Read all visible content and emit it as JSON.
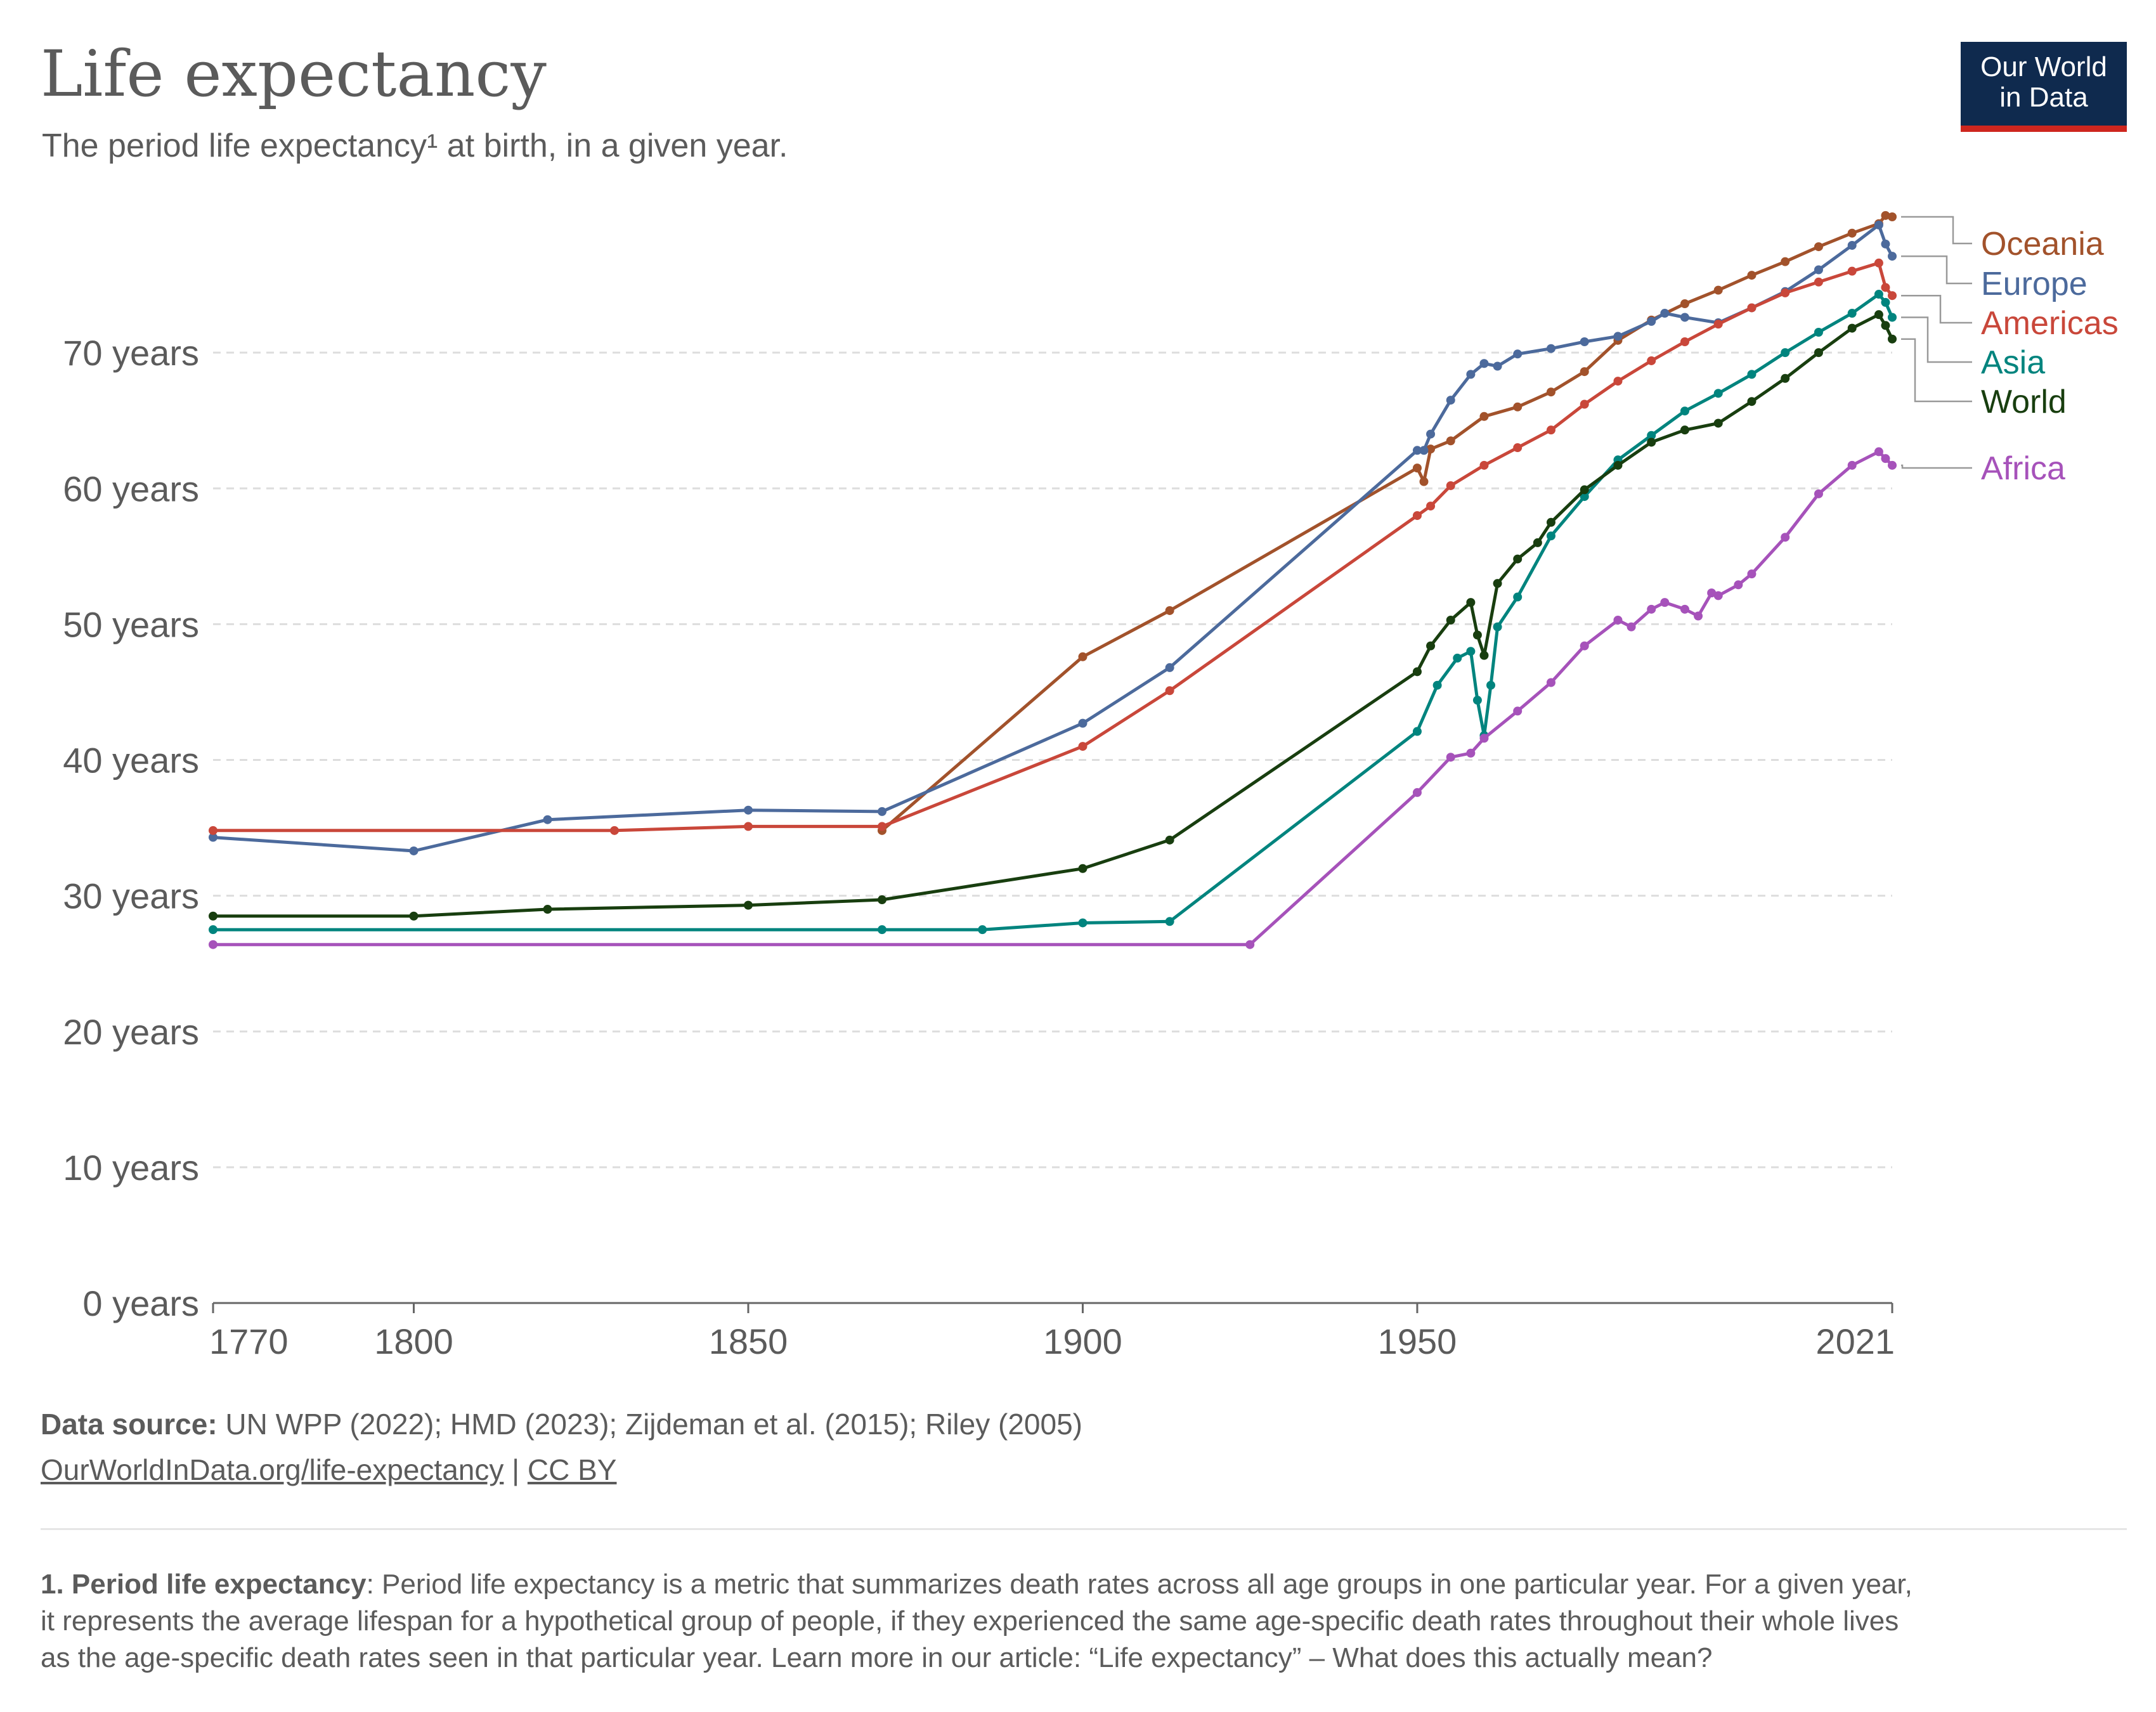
{
  "header": {
    "title": "Life expectancy",
    "subtitle": "The period life expectancy¹ at birth, in a given year."
  },
  "logo": {
    "line1": "Our World",
    "line2": "in Data"
  },
  "colors": {
    "Oceania": "#a2522b",
    "Europe": "#4c6a9c",
    "Americas": "#c9473a",
    "Asia": "#00847e",
    "World": "#183e0f",
    "Africa": "#a652ba",
    "grid": "#dddddd",
    "axis": "#666666"
  },
  "footer": {
    "source_label": "Data source:",
    "source_text": " UN WPP (2022); HMD (2023); Zijdeman et al. (2015); Riley (2005)",
    "link": "OurWorldInData.org/life-expectancy",
    "separator": " | ",
    "license": "CC BY"
  },
  "footnote": {
    "label": "1. Period life expectancy",
    "line1": ": Period life expectancy is a metric that summarizes death rates across all age groups in one particular year. For a given year,",
    "line2": "it represents the average lifespan for a hypothetical group of people, if they experienced the same age-specific death rates throughout their whole lives",
    "line3": "as the age-specific death rates seen in that particular year. Learn more in our article: “Life expectancy” – What does this actually mean?"
  },
  "chart_data": {
    "type": "line",
    "title": "Life expectancy",
    "subtitle": "The period life expectancy¹ at birth, in a given year.",
    "xlabel": "",
    "ylabel": "",
    "xlim": [
      1770,
      2021
    ],
    "ylim": [
      0,
      80
    ],
    "x_ticks": [
      1770,
      1800,
      1850,
      1900,
      1950,
      2021
    ],
    "y_ticks": [
      0,
      10,
      20,
      30,
      40,
      50,
      60,
      70
    ],
    "y_tick_labels": [
      "0 years",
      "10 years",
      "20 years",
      "30 years",
      "40 years",
      "50 years",
      "60 years",
      "70 years"
    ],
    "grid": "horizontal dashed",
    "legend": "right, line-end labels",
    "series": [
      {
        "name": "Oceania",
        "x": [
          1870,
          1900,
          1913,
          1950,
          1951,
          1952,
          1955,
          1960,
          1965,
          1970,
          1975,
          1980,
          1985,
          1990,
          1995,
          2000,
          2005,
          2010,
          2015,
          2019,
          2020,
          2021
        ],
        "y": [
          34.8,
          47.6,
          51.0,
          61.5,
          60.5,
          62.9,
          63.5,
          65.3,
          66.0,
          67.1,
          68.6,
          70.9,
          72.4,
          73.6,
          74.6,
          75.7,
          76.7,
          77.8,
          78.8,
          79.5,
          80.1,
          80.0
        ]
      },
      {
        "name": "Europe",
        "x": [
          1770,
          1800,
          1820,
          1850,
          1870,
          1900,
          1913,
          1950,
          1951,
          1952,
          1955,
          1958,
          1960,
          1962,
          1965,
          1970,
          1975,
          1980,
          1985,
          1987,
          1990,
          1995,
          2000,
          2005,
          2010,
          2015,
          2019,
          2020,
          2021
        ],
        "y": [
          34.3,
          33.3,
          35.6,
          36.3,
          36.2,
          42.7,
          46.8,
          62.8,
          62.8,
          64.0,
          66.5,
          68.4,
          69.2,
          69.0,
          69.9,
          70.3,
          70.8,
          71.2,
          72.3,
          72.9,
          72.6,
          72.2,
          73.3,
          74.5,
          76.1,
          77.9,
          79.4,
          78.0,
          77.1
        ]
      },
      {
        "name": "Americas",
        "x": [
          1770,
          1830,
          1850,
          1870,
          1900,
          1913,
          1950,
          1952,
          1955,
          1960,
          1965,
          1970,
          1975,
          1980,
          1985,
          1990,
          1995,
          2000,
          2005,
          2010,
          2015,
          2019,
          2020,
          2021
        ],
        "y": [
          34.8,
          34.8,
          35.1,
          35.1,
          41.0,
          45.1,
          58.0,
          58.7,
          60.2,
          61.7,
          63.0,
          64.3,
          66.2,
          67.9,
          69.4,
          70.8,
          72.1,
          73.3,
          74.4,
          75.2,
          76.0,
          76.6,
          74.8,
          74.2
        ]
      },
      {
        "name": "Asia",
        "x": [
          1770,
          1870,
          1885,
          1900,
          1913,
          1950,
          1953,
          1956,
          1958,
          1959,
          1960,
          1961,
          1962,
          1965,
          1970,
          1975,
          1980,
          1985,
          1990,
          1995,
          2000,
          2005,
          2010,
          2015,
          2019,
          2020,
          2021
        ],
        "y": [
          27.5,
          27.5,
          27.5,
          28.0,
          28.1,
          42.1,
          45.5,
          47.5,
          48.0,
          44.4,
          41.8,
          45.5,
          49.8,
          52.0,
          56.5,
          59.4,
          62.1,
          63.9,
          65.7,
          67.0,
          68.4,
          70.0,
          71.5,
          72.9,
          74.3,
          73.7,
          72.6
        ]
      },
      {
        "name": "World",
        "x": [
          1770,
          1800,
          1820,
          1850,
          1870,
          1900,
          1913,
          1950,
          1952,
          1955,
          1958,
          1959,
          1960,
          1962,
          1965,
          1968,
          1970,
          1975,
          1980,
          1985,
          1990,
          1995,
          2000,
          2005,
          2010,
          2015,
          2019,
          2020,
          2021
        ],
        "y": [
          28.5,
          28.5,
          29.0,
          29.3,
          29.7,
          32.0,
          34.1,
          46.5,
          48.4,
          50.3,
          51.6,
          49.2,
          47.7,
          53.0,
          54.8,
          56.0,
          57.5,
          59.9,
          61.7,
          63.4,
          64.3,
          64.8,
          66.4,
          68.1,
          70.0,
          71.8,
          72.8,
          72.0,
          71.0
        ]
      },
      {
        "name": "Africa",
        "x": [
          1770,
          1925,
          1950,
          1955,
          1958,
          1960,
          1965,
          1970,
          1975,
          1980,
          1982,
          1985,
          1987,
          1990,
          1992,
          1994,
          1995,
          1998,
          2000,
          2005,
          2010,
          2015,
          2019,
          2020,
          2021
        ],
        "y": [
          26.4,
          26.4,
          37.6,
          40.2,
          40.5,
          41.6,
          43.6,
          45.7,
          48.4,
          50.3,
          49.8,
          51.1,
          51.6,
          51.1,
          50.6,
          52.3,
          52.1,
          52.9,
          53.7,
          56.4,
          59.6,
          61.7,
          62.7,
          62.2,
          61.7
        ]
      }
    ]
  }
}
